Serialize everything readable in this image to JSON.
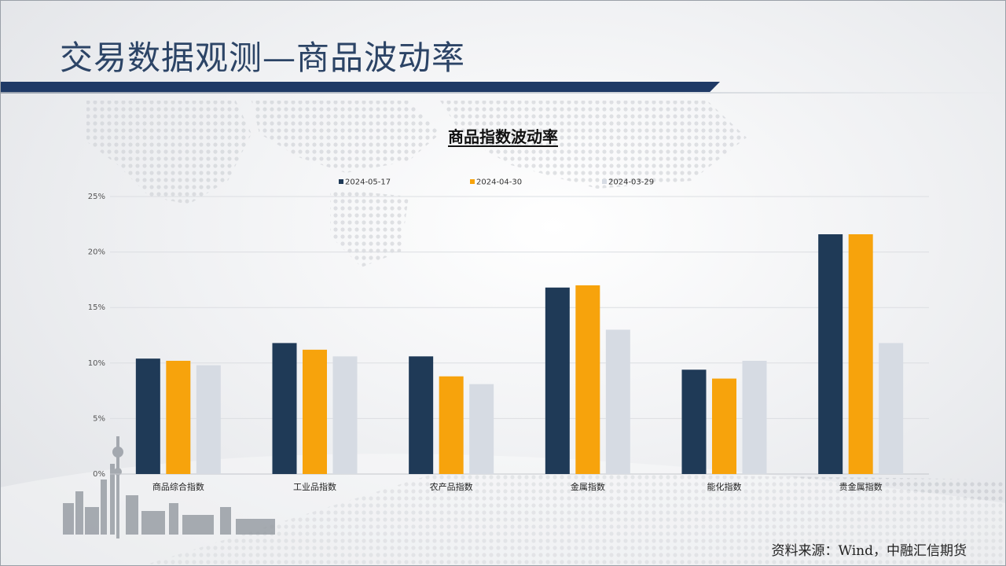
{
  "slide": {
    "title": "交易数据观测—商品波动率",
    "source": "资料来源：Wind，中融汇信期货"
  },
  "colors": {
    "accent": "#1f3a66",
    "series": [
      "#1f3a57",
      "#f7a30c",
      "#d6dbe3"
    ]
  },
  "chart_data": {
    "type": "bar",
    "title": "商品指数波动率",
    "xlabel": "",
    "ylabel": "",
    "categories": [
      "商品综合指数",
      "工业品指数",
      "农产品指数",
      "金属指数",
      "能化指数",
      "贵金属指数"
    ],
    "series": [
      {
        "name": "2024-05-17",
        "values": [
          10.4,
          11.8,
          10.6,
          16.8,
          9.4,
          21.6
        ]
      },
      {
        "name": "2024-04-30",
        "values": [
          10.2,
          11.2,
          8.8,
          17.0,
          8.6,
          21.6
        ]
      },
      {
        "name": "2024-03-29",
        "values": [
          9.8,
          10.6,
          8.1,
          13.0,
          10.2,
          11.8
        ]
      }
    ],
    "ylim": [
      0,
      25
    ],
    "yticks": [
      0,
      5,
      10,
      15,
      20,
      25
    ],
    "ytick_format": "percent",
    "grid": true,
    "legend": "top-center"
  }
}
